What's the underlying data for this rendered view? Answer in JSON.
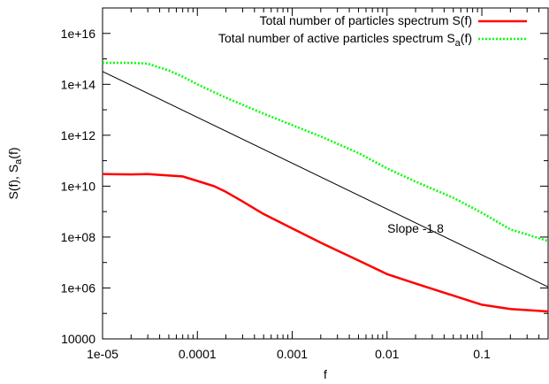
{
  "chart_data": {
    "type": "line",
    "xscale": "log",
    "yscale": "log",
    "xlim": [
      1e-05,
      0.5
    ],
    "ylim": [
      10000,
      1e+17
    ],
    "xlabel": "f",
    "ylabel": "S(f), S",
    "ylabel_sub": "a",
    "ylabel_tail": "(f)",
    "x_ticks": [
      {
        "value": 1e-05,
        "label": "1e-05"
      },
      {
        "value": 0.0001,
        "label": "0.0001"
      },
      {
        "value": 0.001,
        "label": "0.001"
      },
      {
        "value": 0.01,
        "label": "0.01"
      },
      {
        "value": 0.1,
        "label": "0.1"
      }
    ],
    "y_ticks": [
      {
        "value": 10000,
        "label": "10000"
      },
      {
        "value": 1000000.0,
        "label": "1e+06"
      },
      {
        "value": 100000000.0,
        "label": "1e+08"
      },
      {
        "value": 10000000000.0,
        "label": "1e+10"
      },
      {
        "value": 1000000000000.0,
        "label": "1e+12"
      },
      {
        "value": 100000000000000.0,
        "label": "1e+14"
      },
      {
        "value": 1e+16,
        "label": "1e+16"
      }
    ],
    "legend_position": "top-right",
    "series": [
      {
        "name": "Total number of particles spectrum S(f)",
        "color": "#ff0000",
        "style": "solid",
        "x": [
          1e-05,
          2e-05,
          3e-05,
          5e-05,
          7e-05,
          0.0001,
          0.00015,
          0.0002,
          0.0003,
          0.0005,
          0.001,
          0.002,
          0.005,
          0.01,
          0.02,
          0.05,
          0.1,
          0.2,
          0.5
        ],
        "y": [
          30000000000.0,
          29000000000.0,
          30000000000.0,
          26000000000.0,
          24000000000.0,
          16000000000.0,
          10000000000.0,
          6000000000.0,
          2500000000.0,
          800000000.0,
          220000000.0,
          60000000.0,
          12000000.0,
          3500000.0,
          1500000.0,
          500000.0,
          220000.0,
          150000.0,
          120000.0
        ]
      },
      {
        "name": "Total number of active particles spectrum S",
        "name_sub": "a",
        "name_tail": "(f)",
        "color": "#00ff00",
        "style": "dotted",
        "x": [
          1e-05,
          2e-05,
          3e-05,
          5e-05,
          7e-05,
          0.0001,
          0.0002,
          0.0005,
          0.001,
          0.002,
          0.005,
          0.01,
          0.02,
          0.05,
          0.1,
          0.2,
          0.5
        ],
        "y": [
          700000000000000.0,
          700000000000000.0,
          650000000000000.0,
          350000000000000.0,
          200000000000000.0,
          100000000000000.0,
          30000000000000.0,
          7000000000000.0,
          2500000000000.0,
          900000000000.0,
          200000000000.0,
          50000000000.0,
          15000000000.0,
          3500000000.0,
          900000000.0,
          200000000.0,
          70000000.0
        ]
      },
      {
        "name": "",
        "color": "#000000",
        "style": "solid",
        "x": [
          1e-05,
          0.5
        ],
        "y": [
          320000000000000.0,
          1100000.0
        ]
      }
    ],
    "annotations": [
      {
        "text": "Slope -1.8",
        "x": 0.02,
        "y": 90000000.0
      }
    ]
  }
}
